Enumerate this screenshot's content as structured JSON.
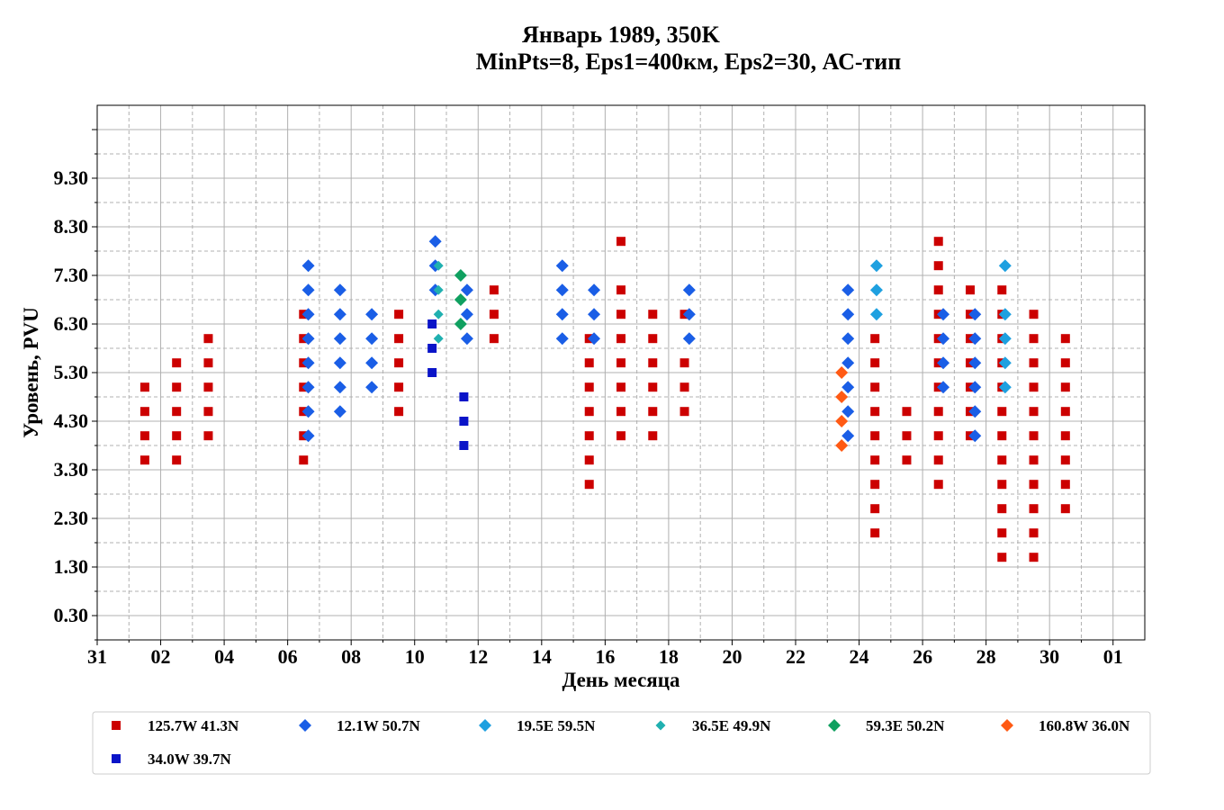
{
  "chart_data": {
    "type": "scatter",
    "title": "Январь 1989, 350K",
    "subtitle": "MinPts=8, Eps1=400км, Eps2=30, АС-тип",
    "xlabel": "День месяца",
    "ylabel": "Уровень, PVU",
    "x_ticks": [
      {
        "label": "31",
        "day": 0
      },
      {
        "label": "02",
        "day": 2
      },
      {
        "label": "04",
        "day": 4
      },
      {
        "label": "06",
        "day": 6
      },
      {
        "label": "08",
        "day": 8
      },
      {
        "label": "10",
        "day": 10
      },
      {
        "label": "12",
        "day": 12
      },
      {
        "label": "14",
        "day": 14
      },
      {
        "label": "16",
        "day": 16
      },
      {
        "label": "18",
        "day": 18
      },
      {
        "label": "20",
        "day": 20
      },
      {
        "label": "22",
        "day": 22
      },
      {
        "label": "24",
        "day": 24
      },
      {
        "label": "26",
        "day": 26
      },
      {
        "label": "28",
        "day": 28
      },
      {
        "label": "30",
        "day": 30
      },
      {
        "label": "01",
        "day": 32
      }
    ],
    "y_ticks": [
      {
        "label": "0.30",
        "value": 0.3
      },
      {
        "label": "1.30",
        "value": 1.3
      },
      {
        "label": "2.30",
        "value": 2.3
      },
      {
        "label": "3.30",
        "value": 3.3
      },
      {
        "label": "4.30",
        "value": 4.3
      },
      {
        "label": "5.30",
        "value": 5.3
      },
      {
        "label": "6.30",
        "value": 6.3
      },
      {
        "label": "7.30",
        "value": 7.3
      },
      {
        "label": "8.30",
        "value": 8.3
      },
      {
        "label": "9.30",
        "value": 9.3
      }
    ],
    "xlim": [
      0,
      33
    ],
    "ylim": [
      -0.2,
      10.8
    ],
    "grid": true,
    "legend_position": "bottom",
    "series": [
      {
        "name": "125.7W 41.3N",
        "color": "#cc0000",
        "marker": "square",
        "points": [
          [
            1.5,
            3.5
          ],
          [
            1.5,
            4.0
          ],
          [
            1.5,
            4.5
          ],
          [
            1.5,
            5.0
          ],
          [
            2.5,
            3.5
          ],
          [
            2.5,
            4.0
          ],
          [
            2.5,
            4.5
          ],
          [
            2.5,
            5.0
          ],
          [
            2.5,
            5.5
          ],
          [
            3.5,
            4.0
          ],
          [
            3.5,
            4.5
          ],
          [
            3.5,
            5.0
          ],
          [
            3.5,
            5.5
          ],
          [
            3.5,
            6.0
          ],
          [
            6.5,
            3.5
          ],
          [
            6.5,
            4.0
          ],
          [
            6.5,
            4.5
          ],
          [
            6.5,
            5.0
          ],
          [
            6.5,
            5.5
          ],
          [
            6.5,
            6.0
          ],
          [
            6.5,
            6.5
          ],
          [
            9.5,
            4.5
          ],
          [
            9.5,
            5.0
          ],
          [
            9.5,
            5.5
          ],
          [
            9.5,
            6.0
          ],
          [
            9.5,
            6.5
          ],
          [
            12.5,
            6.0
          ],
          [
            12.5,
            6.5
          ],
          [
            12.5,
            7.0
          ],
          [
            15.5,
            3.0
          ],
          [
            15.5,
            3.5
          ],
          [
            15.5,
            4.0
          ],
          [
            15.5,
            4.5
          ],
          [
            15.5,
            5.0
          ],
          [
            15.5,
            5.5
          ],
          [
            15.5,
            6.0
          ],
          [
            16.5,
            4.0
          ],
          [
            16.5,
            4.5
          ],
          [
            16.5,
            5.0
          ],
          [
            16.5,
            5.5
          ],
          [
            16.5,
            6.0
          ],
          [
            16.5,
            6.5
          ],
          [
            16.5,
            7.0
          ],
          [
            16.5,
            8.0
          ],
          [
            17.5,
            4.0
          ],
          [
            17.5,
            4.5
          ],
          [
            17.5,
            5.0
          ],
          [
            17.5,
            5.5
          ],
          [
            17.5,
            6.0
          ],
          [
            17.5,
            6.5
          ],
          [
            18.5,
            4.5
          ],
          [
            18.5,
            5.0
          ],
          [
            18.5,
            5.5
          ],
          [
            18.5,
            6.5
          ],
          [
            24.5,
            2.0
          ],
          [
            24.5,
            2.5
          ],
          [
            24.5,
            3.0
          ],
          [
            24.5,
            3.5
          ],
          [
            24.5,
            4.0
          ],
          [
            24.5,
            4.5
          ],
          [
            24.5,
            5.0
          ],
          [
            24.5,
            5.5
          ],
          [
            24.5,
            6.0
          ],
          [
            25.5,
            3.5
          ],
          [
            25.5,
            4.0
          ],
          [
            25.5,
            4.5
          ],
          [
            26.5,
            3.0
          ],
          [
            26.5,
            3.5
          ],
          [
            26.5,
            4.0
          ],
          [
            26.5,
            4.5
          ],
          [
            26.5,
            5.0
          ],
          [
            26.5,
            5.5
          ],
          [
            26.5,
            6.0
          ],
          [
            26.5,
            6.5
          ],
          [
            26.5,
            7.0
          ],
          [
            26.5,
            7.5
          ],
          [
            26.5,
            8.0
          ],
          [
            27.5,
            4.0
          ],
          [
            27.5,
            4.5
          ],
          [
            27.5,
            5.0
          ],
          [
            27.5,
            5.5
          ],
          [
            27.5,
            6.0
          ],
          [
            27.5,
            6.5
          ],
          [
            27.5,
            7.0
          ],
          [
            28.5,
            1.5
          ],
          [
            28.5,
            2.0
          ],
          [
            28.5,
            2.5
          ],
          [
            28.5,
            3.0
          ],
          [
            28.5,
            3.5
          ],
          [
            28.5,
            4.0
          ],
          [
            28.5,
            4.5
          ],
          [
            28.5,
            5.0
          ],
          [
            28.5,
            5.5
          ],
          [
            28.5,
            6.0
          ],
          [
            28.5,
            6.5
          ],
          [
            28.5,
            7.0
          ],
          [
            29.5,
            1.5
          ],
          [
            29.5,
            2.0
          ],
          [
            29.5,
            2.5
          ],
          [
            29.5,
            3.0
          ],
          [
            29.5,
            3.5
          ],
          [
            29.5,
            4.0
          ],
          [
            29.5,
            4.5
          ],
          [
            29.5,
            5.0
          ],
          [
            29.5,
            5.5
          ],
          [
            29.5,
            6.0
          ],
          [
            29.5,
            6.5
          ],
          [
            30.5,
            2.5
          ],
          [
            30.5,
            3.0
          ],
          [
            30.5,
            3.5
          ],
          [
            30.5,
            4.0
          ],
          [
            30.5,
            4.5
          ],
          [
            30.5,
            5.0
          ],
          [
            30.5,
            5.5
          ],
          [
            30.5,
            6.0
          ]
        ]
      },
      {
        "name": "12.1W 50.7N",
        "color": "#1a5ee6",
        "marker": "diamond",
        "points": [
          [
            6.65,
            4.0
          ],
          [
            6.65,
            4.5
          ],
          [
            6.65,
            5.0
          ],
          [
            6.65,
            5.5
          ],
          [
            6.65,
            6.0
          ],
          [
            6.65,
            6.5
          ],
          [
            6.65,
            7.0
          ],
          [
            6.65,
            7.5
          ],
          [
            7.65,
            4.5
          ],
          [
            7.65,
            5.0
          ],
          [
            7.65,
            5.5
          ],
          [
            7.65,
            6.0
          ],
          [
            7.65,
            6.5
          ],
          [
            7.65,
            7.0
          ],
          [
            8.65,
            5.0
          ],
          [
            8.65,
            5.5
          ],
          [
            8.65,
            6.0
          ],
          [
            8.65,
            6.5
          ],
          [
            10.65,
            7.0
          ],
          [
            10.65,
            7.5
          ],
          [
            10.65,
            8.0
          ],
          [
            11.65,
            6.0
          ],
          [
            11.65,
            6.5
          ],
          [
            11.65,
            7.0
          ],
          [
            14.65,
            6.0
          ],
          [
            14.65,
            6.5
          ],
          [
            14.65,
            7.0
          ],
          [
            14.65,
            7.5
          ],
          [
            15.65,
            6.0
          ],
          [
            15.65,
            6.5
          ],
          [
            15.65,
            7.0
          ],
          [
            18.65,
            6.0
          ],
          [
            18.65,
            6.5
          ],
          [
            18.65,
            7.0
          ],
          [
            23.65,
            4.0
          ],
          [
            23.65,
            4.5
          ],
          [
            23.65,
            5.0
          ],
          [
            23.65,
            5.5
          ],
          [
            23.65,
            6.0
          ],
          [
            23.65,
            6.5
          ],
          [
            23.65,
            7.0
          ],
          [
            26.65,
            5.0
          ],
          [
            26.65,
            5.5
          ],
          [
            26.65,
            6.0
          ],
          [
            26.65,
            6.5
          ],
          [
            27.65,
            4.0
          ],
          [
            27.65,
            4.5
          ],
          [
            27.65,
            5.0
          ],
          [
            27.65,
            5.5
          ],
          [
            27.65,
            6.0
          ],
          [
            27.65,
            6.5
          ]
        ]
      },
      {
        "name": "19.5E 59.5N",
        "color": "#1ea0e0",
        "marker": "diamond",
        "points": [
          [
            24.55,
            6.5
          ],
          [
            24.55,
            7.0
          ],
          [
            24.55,
            7.5
          ],
          [
            28.6,
            5.0
          ],
          [
            28.6,
            5.5
          ],
          [
            28.6,
            6.0
          ],
          [
            28.6,
            6.5
          ],
          [
            28.6,
            7.5
          ]
        ]
      },
      {
        "name": "36.5E 49.9N",
        "color": "#20b0b0",
        "marker": "diamond",
        "small": true,
        "points": [
          [
            10.75,
            6.0
          ],
          [
            10.75,
            6.5
          ],
          [
            10.75,
            7.0
          ],
          [
            10.75,
            7.5
          ]
        ]
      },
      {
        "name": "59.3E 50.2N",
        "color": "#10a060",
        "marker": "diamond",
        "points": [
          [
            11.45,
            6.3
          ],
          [
            11.45,
            6.8
          ],
          [
            11.45,
            7.3
          ]
        ]
      },
      {
        "name": "160.8W 36.0N",
        "color": "#ff5a14",
        "marker": "diamond",
        "points": [
          [
            23.45,
            3.8
          ],
          [
            23.45,
            4.3
          ],
          [
            23.45,
            4.8
          ],
          [
            23.45,
            5.3
          ]
        ]
      },
      {
        "name": "34.0W 39.7N",
        "color": "#0a14c8",
        "marker": "square",
        "points": [
          [
            10.55,
            5.3
          ],
          [
            10.55,
            5.8
          ],
          [
            10.55,
            6.3
          ],
          [
            11.55,
            3.8
          ],
          [
            11.55,
            4.3
          ],
          [
            11.55,
            4.8
          ]
        ]
      }
    ]
  }
}
